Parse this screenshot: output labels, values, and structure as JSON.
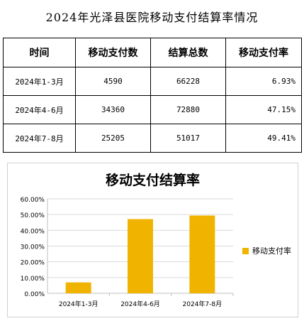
{
  "page_title": "2024年光泽县医院移动支付结算率情况",
  "table": {
    "headers": [
      "时间",
      "移动支付数",
      "结算总数",
      "移动支付率"
    ],
    "rows": [
      [
        "2024年1-3月",
        "4590",
        "66228",
        "6.93%"
      ],
      [
        "2024年4-6月",
        "34360",
        "72880",
        "47.15%"
      ],
      [
        "2024年7-8月",
        "25205",
        "51017",
        "49.41%"
      ]
    ]
  },
  "chart_data": {
    "type": "bar",
    "title": "移动支付结算率",
    "categories": [
      "2024年1-3月",
      "2024年4-6月",
      "2024年7-8月"
    ],
    "series": [
      {
        "name": "移动支付率",
        "values": [
          6.93,
          47.15,
          49.41
        ],
        "color": "#f0b400"
      }
    ],
    "ylim": [
      0,
      60
    ],
    "ytick_labels": [
      "0.00%",
      "10.00%",
      "20.00%",
      "30.00%",
      "40.00%",
      "50.00%",
      "60.00%"
    ],
    "grid": true,
    "legend_position": "right"
  }
}
